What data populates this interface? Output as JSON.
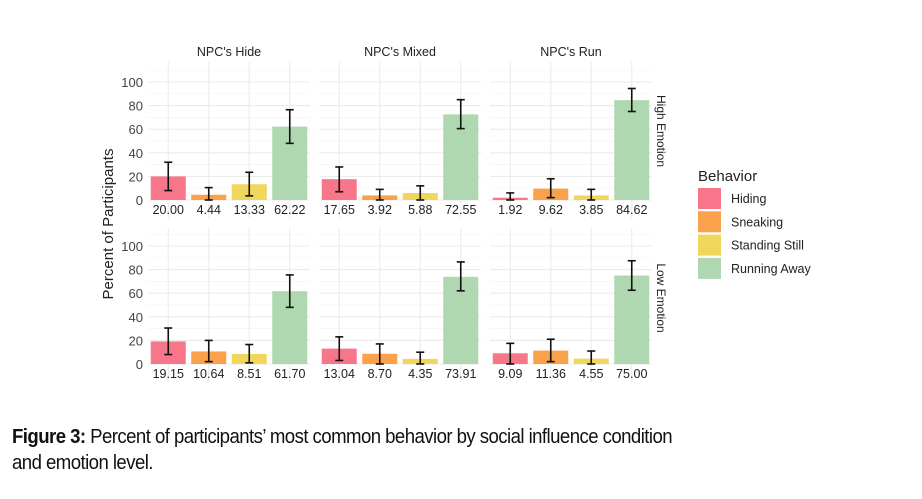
{
  "chart_data": {
    "type": "bar",
    "title": "",
    "ylabel": "Percent of Participants",
    "xlabel": "",
    "ylim": [
      0,
      110
    ],
    "yticks": [
      0,
      20,
      40,
      60,
      80,
      100
    ],
    "grid": true,
    "columns": [
      "NPC's Hide",
      "NPC's Mixed",
      "NPC's Run"
    ],
    "rows": [
      "High Emotion",
      "Low Emotion"
    ],
    "categories": [
      "Hiding",
      "Sneaking",
      "Standing Still",
      "Running Away"
    ],
    "colors": [
      "#f8768a",
      "#f9a24b",
      "#f0d65a",
      "#afd8b0"
    ],
    "legend": {
      "title": "Behavior",
      "placement": "right"
    },
    "panels": [
      {
        "row": 0,
        "col": 0,
        "values": [
          20.0,
          4.44,
          13.33,
          62.22
        ],
        "labels": [
          "20.00",
          "4.44",
          "13.33",
          "62.22"
        ],
        "lower": [
          8,
          0,
          3.5,
          48
        ],
        "upper": [
          32,
          10.5,
          23.5,
          76.5
        ]
      },
      {
        "row": 0,
        "col": 1,
        "values": [
          17.65,
          3.92,
          5.88,
          72.55
        ],
        "labels": [
          "17.65",
          "3.92",
          "5.88",
          "72.55"
        ],
        "lower": [
          7,
          0,
          0,
          60.5
        ],
        "upper": [
          28,
          9,
          12,
          85
        ]
      },
      {
        "row": 0,
        "col": 2,
        "values": [
          1.92,
          9.62,
          3.85,
          84.62
        ],
        "labels": [
          "1.92",
          "9.62",
          "3.85",
          "84.62"
        ],
        "lower": [
          0,
          2,
          0,
          75
        ],
        "upper": [
          6,
          18,
          9,
          94.5
        ]
      },
      {
        "row": 1,
        "col": 0,
        "values": [
          19.15,
          10.64,
          8.51,
          61.7
        ],
        "labels": [
          "19.15",
          "10.64",
          "8.51",
          "61.70"
        ],
        "lower": [
          8,
          2,
          1,
          48
        ],
        "upper": [
          30.5,
          20,
          16.5,
          75.5
        ]
      },
      {
        "row": 1,
        "col": 1,
        "values": [
          13.04,
          8.7,
          4.35,
          73.91
        ],
        "labels": [
          "13.04",
          "8.70",
          "4.35",
          "73.91"
        ],
        "lower": [
          3,
          0,
          0,
          62
        ],
        "upper": [
          23,
          17,
          10,
          86.5
        ]
      },
      {
        "row": 1,
        "col": 2,
        "values": [
          9.09,
          11.36,
          4.55,
          75.0
        ],
        "labels": [
          "9.09",
          "11.36",
          "4.55",
          "75.00"
        ],
        "lower": [
          0,
          2,
          0,
          62.5
        ],
        "upper": [
          17.5,
          21,
          11,
          87.5
        ]
      }
    ]
  },
  "caption": {
    "label": "Figure 3:",
    "text": " Percent of participants’ most common behavior by social influence condition",
    "text2": "and emotion level."
  }
}
